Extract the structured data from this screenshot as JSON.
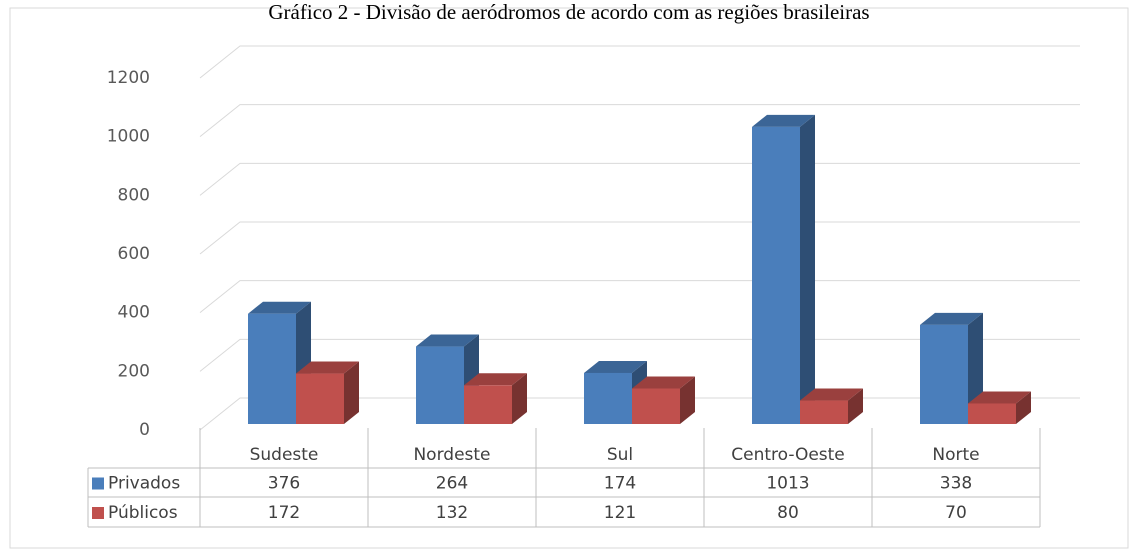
{
  "chart_data": {
    "type": "bar3d",
    "title": "Gráfico 2 - Divisão de aeródromos de acordo com as regiões brasileiras",
    "categories": [
      "Sudeste",
      "Nordeste",
      "Sul",
      "Centro-Oeste",
      "Norte"
    ],
    "series": [
      {
        "name": "Privados",
        "color": "#4a7ebb",
        "values": [
          376,
          264,
          174,
          1013,
          338
        ]
      },
      {
        "name": "Públicos",
        "color": "#c0504d",
        "values": [
          172,
          132,
          121,
          80,
          70
        ]
      }
    ],
    "ylim": [
      0,
      1200
    ],
    "yticks": [
      0,
      200,
      400,
      600,
      800,
      1000,
      1200
    ],
    "grid": true
  }
}
